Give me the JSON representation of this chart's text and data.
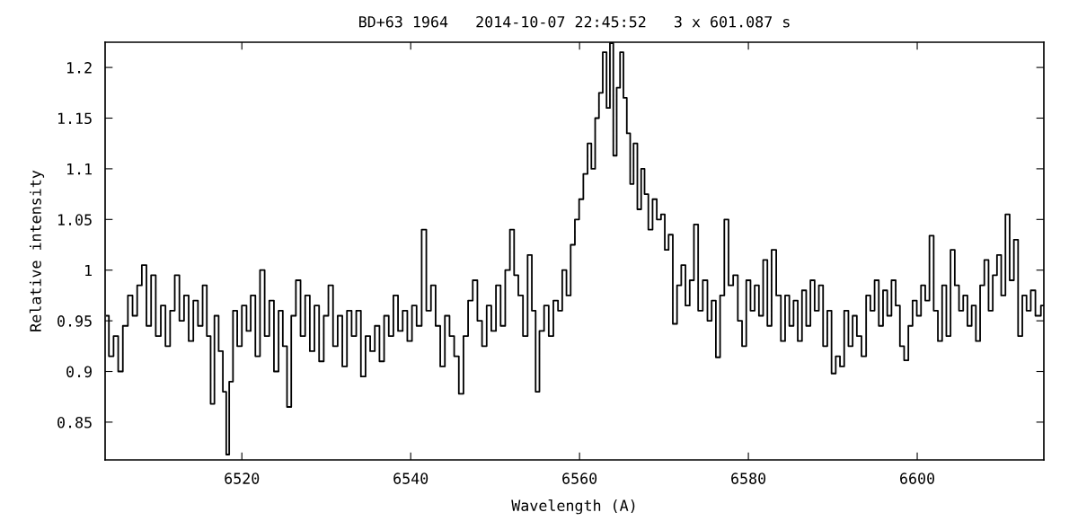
{
  "chart_data": {
    "type": "step",
    "title": "BD+63 1964   2014-10-07 22:45:52   3 x 601.087 s",
    "xlabel": "Wavelength (A)",
    "ylabel": "Relative intensity",
    "xlim": [
      6503.8,
      6615.0
    ],
    "ylim": [
      0.8127,
      1.2249
    ],
    "xticks": [
      6520,
      6540,
      6560,
      6580,
      6600
    ],
    "yticks": [
      0.85,
      0.9,
      0.95,
      1,
      1.05,
      1.1,
      1.15,
      1.2
    ],
    "grid": false,
    "legend": false,
    "series": [
      {
        "color": "#000000",
        "x": [
          6504.0,
          6504.5,
          6505.1,
          6505.6,
          6506.2,
          6506.8,
          6507.3,
          6507.9,
          6508.4,
          6509.0,
          6509.5,
          6510.1,
          6510.7,
          6511.2,
          6511.8,
          6512.3,
          6512.9,
          6513.4,
          6514.0,
          6514.5,
          6515.1,
          6515.6,
          6516.1,
          6516.5,
          6517.0,
          6517.5,
          6518.0,
          6518.3,
          6518.7,
          6519.2,
          6519.7,
          6520.3,
          6520.8,
          6521.3,
          6521.9,
          6522.4,
          6523.0,
          6523.5,
          6524.1,
          6524.6,
          6525.1,
          6525.6,
          6526.1,
          6526.7,
          6527.2,
          6527.8,
          6528.3,
          6528.9,
          6529.4,
          6530.0,
          6530.5,
          6531.1,
          6531.6,
          6532.2,
          6532.7,
          6533.3,
          6533.8,
          6534.4,
          6534.9,
          6535.5,
          6536.0,
          6536.6,
          6537.1,
          6537.7,
          6538.2,
          6538.8,
          6539.3,
          6539.9,
          6540.4,
          6541.0,
          6541.6,
          6542.1,
          6542.7,
          6543.2,
          6543.8,
          6544.3,
          6544.9,
          6545.4,
          6546.0,
          6546.5,
          6547.1,
          6547.6,
          6548.2,
          6548.7,
          6549.3,
          6549.8,
          6550.4,
          6550.9,
          6551.5,
          6552.0,
          6552.5,
          6553.0,
          6553.6,
          6554.1,
          6554.6,
          6555.0,
          6555.5,
          6556.1,
          6556.6,
          6557.2,
          6557.7,
          6558.2,
          6558.7,
          6559.2,
          6559.7,
          6560.2,
          6560.7,
          6561.2,
          6561.6,
          6562.1,
          6562.5,
          6563.0,
          6563.4,
          6563.8,
          6564.2,
          6564.6,
          6565.0,
          6565.4,
          6565.8,
          6566.2,
          6566.6,
          6567.1,
          6567.5,
          6567.9,
          6568.4,
          6568.9,
          6569.4,
          6569.9,
          6570.3,
          6570.8,
          6571.3,
          6571.8,
          6572.3,
          6572.8,
          6573.3,
          6573.8,
          6574.3,
          6574.9,
          6575.4,
          6575.9,
          6576.4,
          6576.9,
          6577.4,
          6577.9,
          6578.5,
          6579.0,
          6579.5,
          6580.0,
          6580.5,
          6581.0,
          6581.5,
          6582.0,
          6582.5,
          6583.0,
          6583.6,
          6584.1,
          6584.6,
          6585.1,
          6585.6,
          6586.1,
          6586.6,
          6587.1,
          6587.6,
          6588.1,
          6588.6,
          6589.1,
          6589.6,
          6590.1,
          6590.6,
          6591.1,
          6591.6,
          6592.1,
          6592.6,
          6593.1,
          6593.7,
          6594.2,
          6594.7,
          6595.2,
          6595.7,
          6596.2,
          6596.7,
          6597.2,
          6597.7,
          6598.2,
          6598.7,
          6599.2,
          6599.7,
          6600.2,
          6600.7,
          6601.2,
          6601.7,
          6602.2,
          6602.7,
          6603.2,
          6603.7,
          6604.2,
          6604.7,
          6605.2,
          6605.7,
          6606.2,
          6606.7,
          6607.2,
          6607.7,
          6608.2,
          6608.7,
          6609.2,
          6609.7,
          6610.2,
          6610.7,
          6611.2,
          6611.7,
          6612.2,
          6612.7,
          6613.2,
          6613.7,
          6614.3,
          6615.0
        ],
        "values": [
          0.955,
          0.915,
          0.935,
          0.9,
          0.945,
          0.975,
          0.955,
          0.985,
          1.005,
          0.945,
          0.995,
          0.935,
          0.965,
          0.925,
          0.96,
          0.995,
          0.95,
          0.975,
          0.93,
          0.97,
          0.945,
          0.985,
          0.935,
          0.868,
          0.955,
          0.92,
          0.88,
          0.818,
          0.89,
          0.96,
          0.925,
          0.965,
          0.94,
          0.975,
          0.915,
          1.0,
          0.935,
          0.97,
          0.9,
          0.96,
          0.925,
          0.865,
          0.955,
          0.99,
          0.935,
          0.975,
          0.92,
          0.965,
          0.91,
          0.955,
          0.985,
          0.925,
          0.955,
          0.905,
          0.96,
          0.935,
          0.96,
          0.895,
          0.935,
          0.92,
          0.945,
          0.91,
          0.955,
          0.935,
          0.975,
          0.94,
          0.96,
          0.93,
          0.965,
          0.945,
          1.04,
          0.96,
          0.985,
          0.945,
          0.905,
          0.955,
          0.935,
          0.915,
          0.878,
          0.935,
          0.97,
          0.99,
          0.95,
          0.925,
          0.965,
          0.94,
          0.985,
          0.945,
          1.0,
          1.04,
          0.995,
          0.975,
          0.935,
          1.015,
          0.96,
          0.88,
          0.94,
          0.965,
          0.935,
          0.97,
          0.96,
          1.0,
          0.975,
          1.025,
          1.05,
          1.07,
          1.095,
          1.125,
          1.1,
          1.15,
          1.175,
          1.215,
          1.16,
          1.224,
          1.113,
          1.18,
          1.215,
          1.17,
          1.135,
          1.085,
          1.125,
          1.06,
          1.1,
          1.075,
          1.04,
          1.07,
          1.05,
          1.055,
          1.02,
          1.035,
          0.947,
          0.985,
          1.005,
          0.965,
          0.99,
          1.045,
          0.96,
          0.99,
          0.95,
          0.97,
          0.914,
          0.975,
          1.05,
          0.985,
          0.995,
          0.95,
          0.925,
          0.99,
          0.96,
          0.985,
          0.955,
          1.01,
          0.945,
          1.02,
          0.975,
          0.93,
          0.975,
          0.945,
          0.97,
          0.93,
          0.98,
          0.945,
          0.99,
          0.96,
          0.985,
          0.925,
          0.96,
          0.898,
          0.915,
          0.905,
          0.96,
          0.925,
          0.955,
          0.935,
          0.915,
          0.975,
          0.96,
          0.99,
          0.945,
          0.98,
          0.955,
          0.99,
          0.965,
          0.925,
          0.911,
          0.945,
          0.97,
          0.955,
          0.985,
          0.97,
          1.034,
          0.96,
          0.93,
          0.985,
          0.935,
          1.02,
          0.985,
          0.96,
          0.975,
          0.945,
          0.965,
          0.93,
          0.985,
          1.01,
          0.96,
          0.995,
          1.015,
          0.975,
          1.055,
          0.99,
          1.03,
          0.935,
          0.975,
          0.96,
          0.98,
          0.955,
          0.965
        ]
      }
    ]
  }
}
